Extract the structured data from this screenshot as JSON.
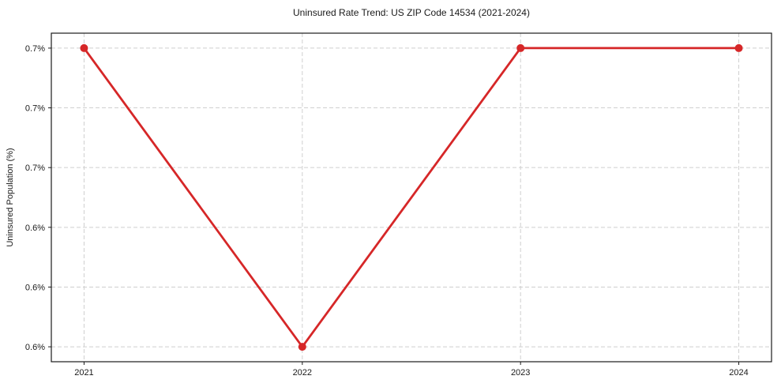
{
  "figure": {
    "title": "Uninsured Rate Trend: US ZIP Code 14534 (2021-2024)"
  },
  "chart_data": {
    "type": "line",
    "title": "Uninsured Rate Trend: US ZIP Code 14534 (2021-2024)",
    "xlabel": "",
    "ylabel": "Uninsured Population (%)",
    "x": [
      2021,
      2022,
      2023,
      2024
    ],
    "x_tick_labels": [
      "2021",
      "2022",
      "2023",
      "2024"
    ],
    "series": [
      {
        "name": "Uninsured Population (%)",
        "values": [
          0.7,
          0.6,
          0.7,
          0.7
        ],
        "color": "#d62728",
        "marker": "circle",
        "marker_size": 5,
        "line_width": 2.8
      }
    ],
    "yticks": [
      {
        "value": 0.7,
        "label": "0.7%"
      },
      {
        "value": 0.68,
        "label": "0.7%"
      },
      {
        "value": 0.66,
        "label": "0.7%"
      },
      {
        "value": 0.64,
        "label": "0.6%"
      },
      {
        "value": 0.62,
        "label": "0.6%"
      },
      {
        "value": 0.6,
        "label": "0.6%"
      }
    ],
    "xlim": [
      2020.85,
      2024.15
    ],
    "ylim": [
      0.595,
      0.705
    ],
    "grid": true,
    "grid_style": "dashed",
    "legend": "none",
    "colors": {
      "line": "#d62728",
      "grid": "#cfcfcf",
      "spine": "#1a1a1a",
      "tick": "#1a1a1a",
      "background": "#ffffff"
    }
  }
}
